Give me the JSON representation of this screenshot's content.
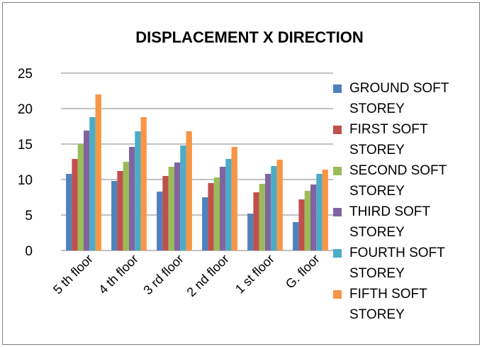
{
  "chart_data": {
    "type": "bar",
    "title": "DISPLACEMENT  X DIRECTION",
    "categories": [
      "5 th floor",
      "4 th floor",
      "3 rd  floor",
      "2 nd floor",
      "1 st  floor",
      "G. floor"
    ],
    "ylim": [
      0,
      25
    ],
    "yticks": [
      "0",
      "5",
      "10",
      "15",
      "20",
      "25"
    ],
    "grid": true,
    "legend_position": "right",
    "series": [
      {
        "name": "GROUND SOFT STOREY",
        "color": "#4F81BD",
        "values": [
          10.8,
          9.8,
          8.3,
          7.5,
          5.2,
          4.0
        ]
      },
      {
        "name": "FIRST  SOFT STOREY",
        "color": "#C0504D",
        "values": [
          12.9,
          11.2,
          10.5,
          9.5,
          8.2,
          7.2
        ]
      },
      {
        "name": "SECOND  SOFT STOREY",
        "color": "#9BBB59",
        "values": [
          15.0,
          12.5,
          11.8,
          10.3,
          9.4,
          8.4
        ]
      },
      {
        "name": "THIRD  SOFT STOREY",
        "color": "#8064A2",
        "values": [
          16.9,
          14.6,
          12.4,
          11.8,
          10.8,
          9.3
        ]
      },
      {
        "name": "FOURTH  SOFT STOREY",
        "color": "#4BACC6",
        "values": [
          18.8,
          16.8,
          14.8,
          12.9,
          11.9,
          10.8
        ]
      },
      {
        "name": "FIFTH SOFT STOREY",
        "color": "#F79646",
        "values": [
          22.0,
          18.8,
          16.8,
          14.6,
          12.8,
          11.4
        ]
      }
    ]
  }
}
